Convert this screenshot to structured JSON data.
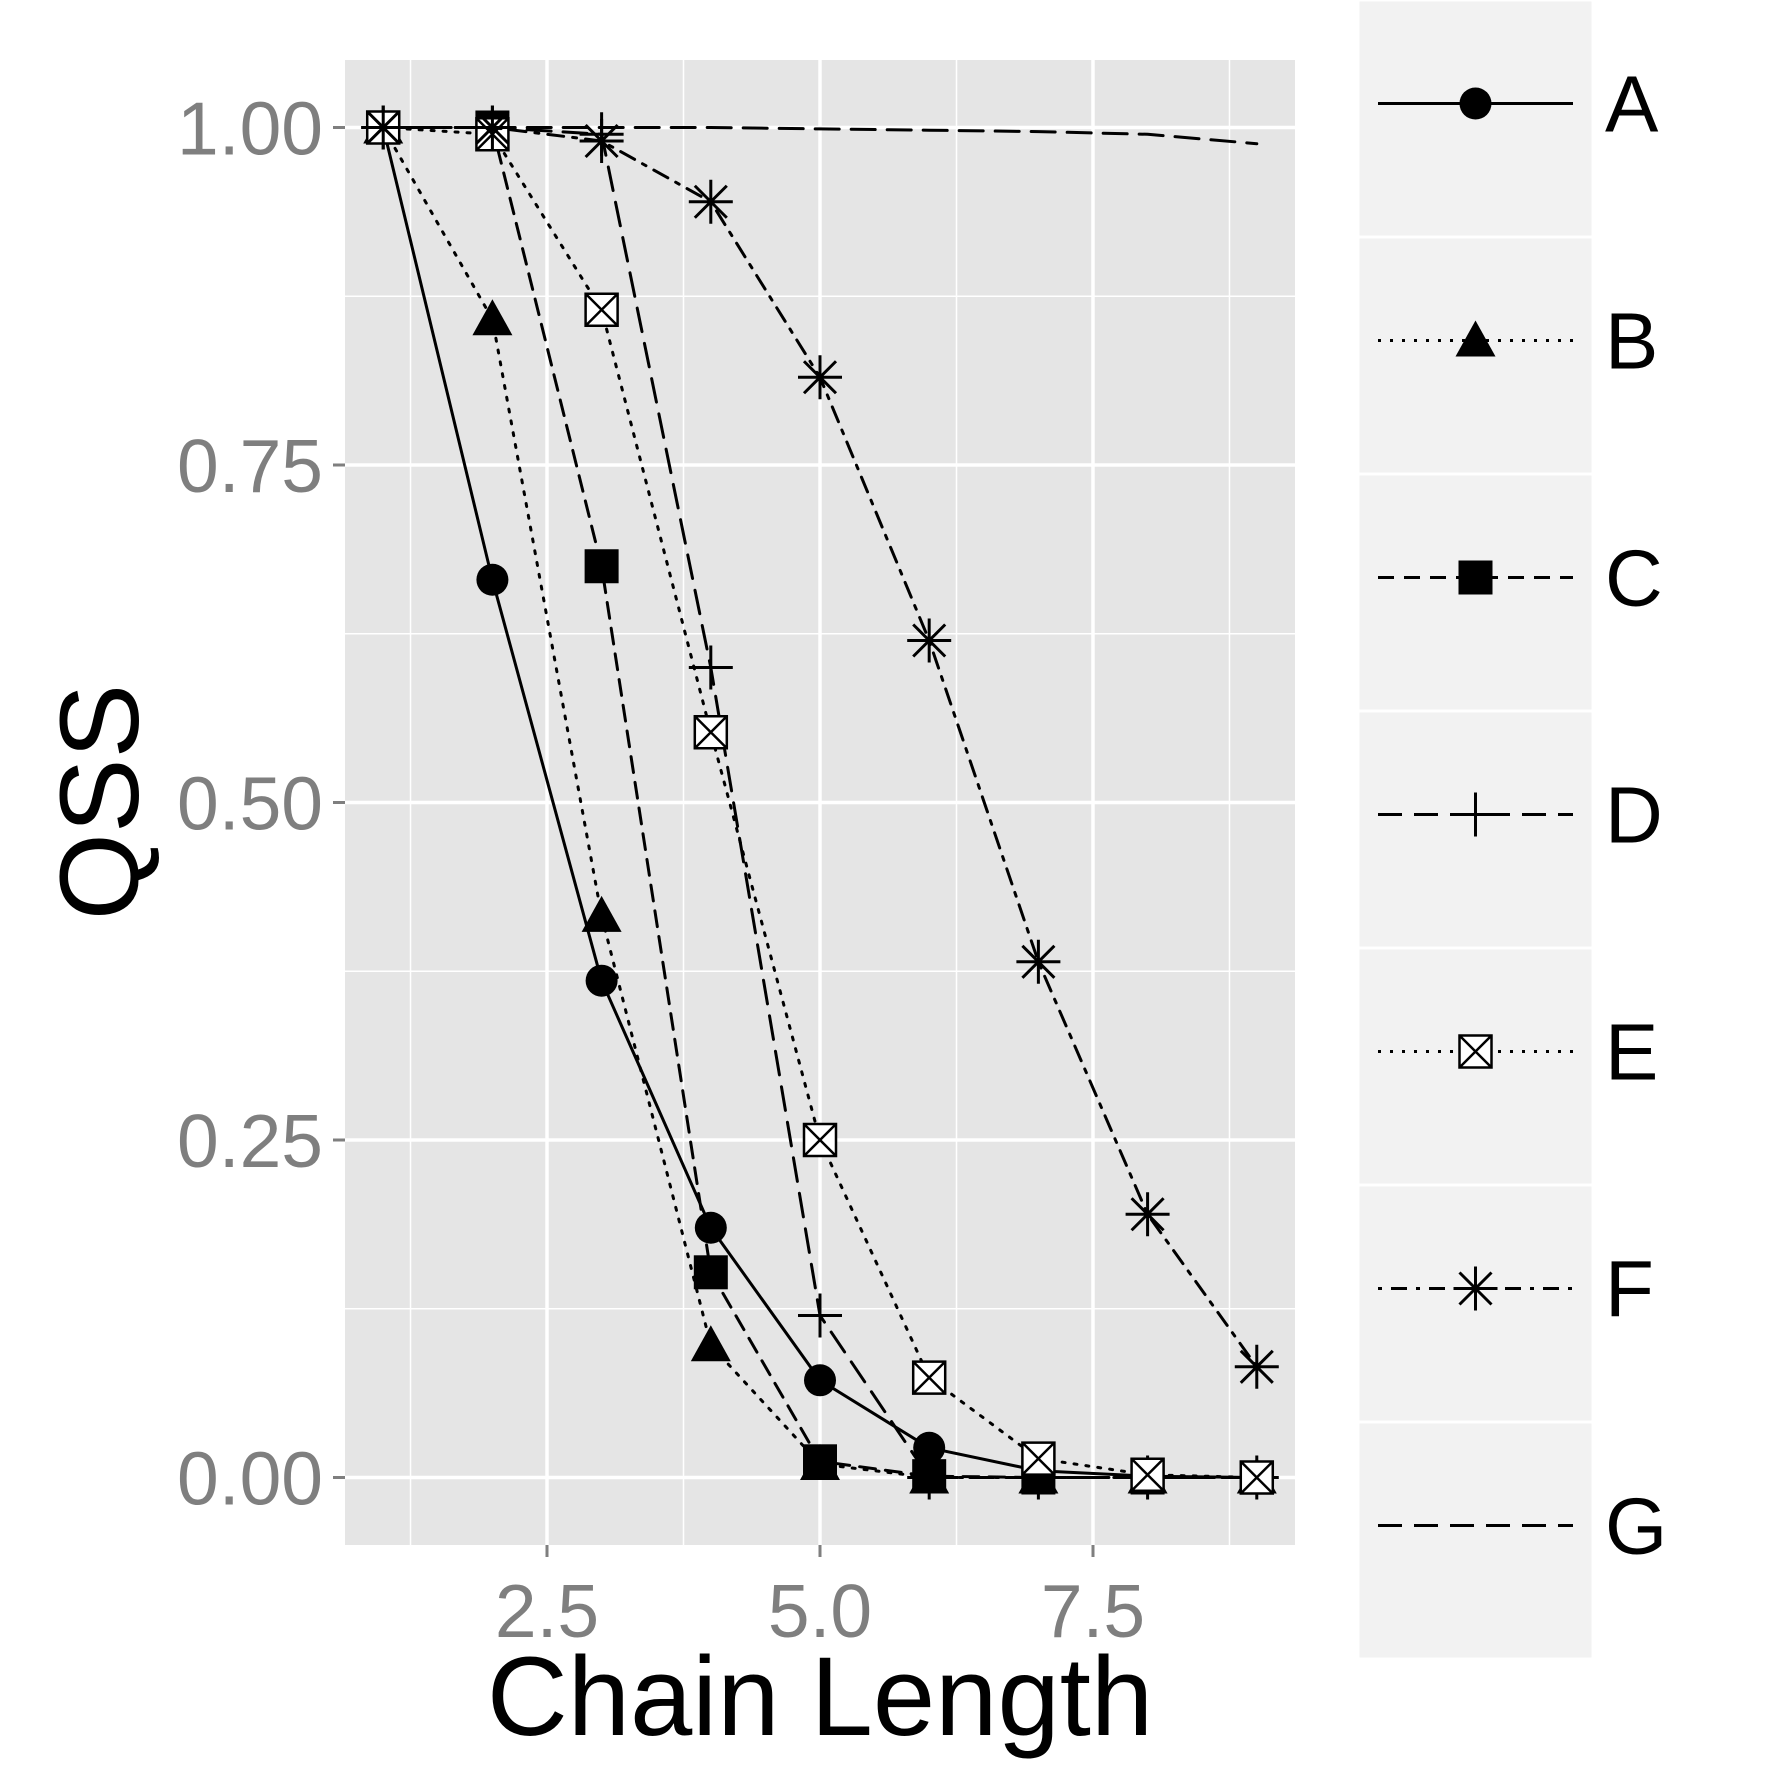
{
  "chart_data": {
    "type": "line",
    "xlabel": "Chain Length",
    "ylabel": "QSS",
    "xlim": [
      0.65,
      9.35
    ],
    "ylim": [
      -0.05,
      1.05
    ],
    "xticks": [
      2.5,
      5.0,
      7.5
    ],
    "xtick_labels": [
      "2.5",
      "5.0",
      "7.5"
    ],
    "yticks": [
      0.0,
      0.25,
      0.5,
      0.75,
      1.0
    ],
    "ytick_labels": [
      "0.00",
      "0.25",
      "0.50",
      "0.75",
      "1.00"
    ],
    "grid": true,
    "legend_position": "right",
    "colors": {
      "panel": "#e5e5e5",
      "grid": "#ffffff",
      "legend_key": "#f2f2f2",
      "line": "#000000",
      "tick_text": "#7f7f7f"
    },
    "series": [
      {
        "name": "A",
        "linetype": "solid",
        "marker": "circle",
        "x": [
          1,
          2,
          3,
          4,
          5,
          6,
          7,
          8,
          9
        ],
        "y": [
          1.0,
          0.665,
          0.368,
          0.185,
          0.072,
          0.022,
          0.005,
          0.001,
          0.0
        ]
      },
      {
        "name": "B",
        "linetype": "dotted",
        "marker": "triangle",
        "x": [
          1,
          2,
          3,
          4,
          5,
          6,
          7,
          8,
          9
        ],
        "y": [
          1.0,
          0.858,
          0.416,
          0.098,
          0.01,
          0.0,
          0.0,
          0.0,
          0.0
        ]
      },
      {
        "name": "C",
        "linetype": "dashed",
        "marker": "square",
        "x": [
          1,
          2,
          3,
          4,
          5,
          6,
          7,
          8,
          9
        ],
        "y": [
          1.0,
          1.0,
          0.675,
          0.152,
          0.012,
          0.001,
          0.0,
          0.0,
          0.0
        ]
      },
      {
        "name": "D",
        "linetype": "longdash",
        "marker": "plus",
        "x": [
          1,
          2,
          3,
          4,
          5,
          6,
          7,
          8,
          9
        ],
        "y": [
          1.0,
          1.0,
          0.995,
          0.6,
          0.12,
          0.0,
          0.0,
          0.0,
          0.0
        ]
      },
      {
        "name": "E",
        "linetype": "dotted",
        "marker": "boxed-x",
        "x": [
          1,
          2,
          3,
          4,
          5,
          6,
          7,
          8,
          9
        ],
        "y": [
          1.0,
          0.995,
          0.865,
          0.552,
          0.25,
          0.074,
          0.014,
          0.002,
          0.0
        ]
      },
      {
        "name": "F",
        "linetype": "dotdash",
        "marker": "asterisk",
        "x": [
          1,
          2,
          3,
          4,
          5,
          6,
          7,
          8,
          9
        ],
        "y": [
          1.0,
          1.0,
          0.99,
          0.945,
          0.815,
          0.62,
          0.382,
          0.195,
          0.082
        ]
      },
      {
        "name": "G",
        "linetype": "longdash",
        "marker": "none",
        "x": [
          1,
          2,
          3,
          4,
          5,
          6,
          7,
          8,
          9
        ],
        "y": [
          1.0,
          1.0,
          1.0,
          1.0,
          0.999,
          0.998,
          0.997,
          0.995,
          0.988
        ]
      }
    ]
  }
}
